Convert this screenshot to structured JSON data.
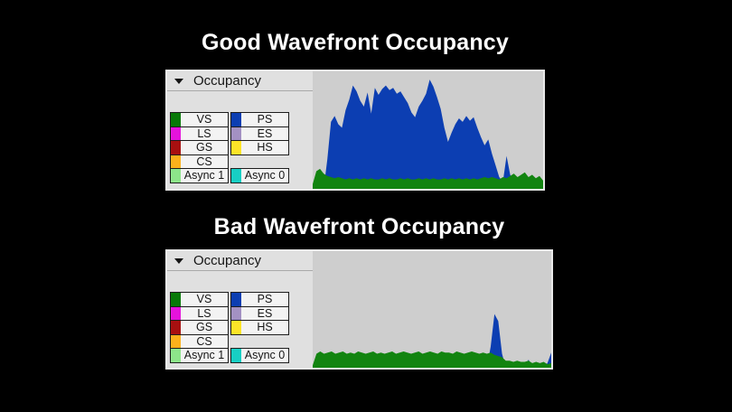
{
  "colors": {
    "page_background": "#000000",
    "title_text": "#ffffff",
    "legend_pane_bg": "#e0e0e0",
    "chart_pane_bg": "#cecece",
    "legend_cell_bg": "#f3f3f3",
    "legend_cell_border": "#1d1d1d",
    "chart_blue": "#0c3eb2",
    "chart_green": "#128410"
  },
  "panels": [
    {
      "title": "Good Wavefront Occupancy",
      "header": {
        "label": "Occupancy",
        "collapse_icon": "triangle-down"
      }
    },
    {
      "title": "Bad Wavefront Occupancy",
      "header": {
        "label": "Occupancy",
        "collapse_icon": "triangle-down"
      }
    }
  ],
  "legend": {
    "rows": [
      {
        "left": {
          "label": "VS",
          "color": "#077907"
        },
        "right": {
          "label": "PS",
          "color": "#0c3eb2"
        }
      },
      {
        "left": {
          "label": "LS",
          "color": "#e513dc"
        },
        "right": {
          "label": "ES",
          "color": "#a391c3"
        }
      },
      {
        "left": {
          "label": "GS",
          "color": "#a81010"
        },
        "right": {
          "label": "HS",
          "color": "#fde428"
        }
      },
      {
        "left": {
          "label": "CS",
          "color": "#fcb11c"
        },
        "right": null
      },
      {
        "left": {
          "label": "Async 1",
          "color": "#8de58a"
        },
        "right": {
          "label": "Async 0",
          "color": "#17cfc4"
        }
      }
    ]
  },
  "chart_data": [
    {
      "type": "area",
      "title": "Good Wavefront Occupancy",
      "xlabel": "",
      "ylabel": "",
      "ylim": [
        0,
        100
      ],
      "note": "axes unlabeled in source; values are estimated percent of chart height, sampled uniformly left-to-right",
      "series": [
        {
          "name": "PS",
          "color": "#0c3eb2",
          "values": [
            0,
            0,
            0,
            0,
            25,
            57,
            62,
            55,
            52,
            67,
            76,
            88,
            83,
            75,
            70,
            82,
            64,
            86,
            80,
            85,
            88,
            84,
            86,
            81,
            83,
            78,
            73,
            65,
            61,
            70,
            75,
            81,
            93,
            87,
            78,
            68,
            52,
            40,
            48,
            55,
            60,
            57,
            62,
            58,
            61,
            52,
            44,
            37,
            42,
            30,
            20,
            10,
            6,
            28,
            12,
            4,
            7,
            3,
            4,
            3,
            8,
            4,
            7,
            4
          ]
        },
        {
          "name": "VS",
          "color": "#128410",
          "values": [
            4,
            15,
            17,
            13,
            11,
            10,
            9,
            10,
            9,
            8,
            9,
            8,
            9,
            8,
            9,
            8,
            9,
            8,
            8,
            9,
            8,
            9,
            8,
            8,
            9,
            8,
            9,
            8,
            8,
            9,
            8,
            9,
            8,
            9,
            8,
            8,
            9,
            8,
            9,
            8,
            9,
            8,
            9,
            8,
            9,
            8,
            9,
            10,
            9,
            10,
            9,
            8,
            10,
            9,
            11,
            13,
            10,
            12,
            14,
            10,
            12,
            9,
            11,
            7
          ]
        }
      ]
    },
    {
      "type": "area",
      "title": "Bad Wavefront Occupancy",
      "xlabel": "",
      "ylabel": "",
      "ylim": [
        0,
        100
      ],
      "note": "axes unlabeled in source; values are estimated percent of chart height, sampled uniformly left-to-right",
      "series": [
        {
          "name": "PS",
          "color": "#0c3eb2",
          "values": [
            0,
            0,
            0,
            0,
            0,
            0,
            0,
            0,
            0,
            0,
            0,
            0,
            0,
            0,
            0,
            0,
            0,
            0,
            0,
            0,
            0,
            0,
            0,
            0,
            0,
            0,
            0,
            0,
            0,
            0,
            0,
            0,
            0,
            0,
            0,
            0,
            0,
            0,
            0,
            0,
            0,
            0,
            0,
            0,
            0,
            0,
            0,
            18,
            46,
            40,
            12,
            0,
            0,
            0,
            0,
            0,
            0,
            7,
            0,
            0,
            0,
            0,
            4,
            13
          ]
        },
        {
          "name": "VS",
          "color": "#128410",
          "values": [
            2,
            12,
            14,
            12,
            13,
            14,
            12,
            13,
            14,
            12,
            13,
            12,
            14,
            13,
            12,
            13,
            14,
            12,
            13,
            12,
            13,
            14,
            12,
            13,
            14,
            13,
            12,
            13,
            14,
            12,
            13,
            14,
            13,
            12,
            14,
            13,
            13,
            12,
            14,
            13,
            12,
            13,
            14,
            13,
            12,
            13,
            12,
            13,
            11,
            10,
            9,
            6,
            6,
            5,
            6,
            5,
            5,
            6,
            4,
            5,
            4,
            5,
            3,
            4
          ]
        }
      ]
    }
  ]
}
